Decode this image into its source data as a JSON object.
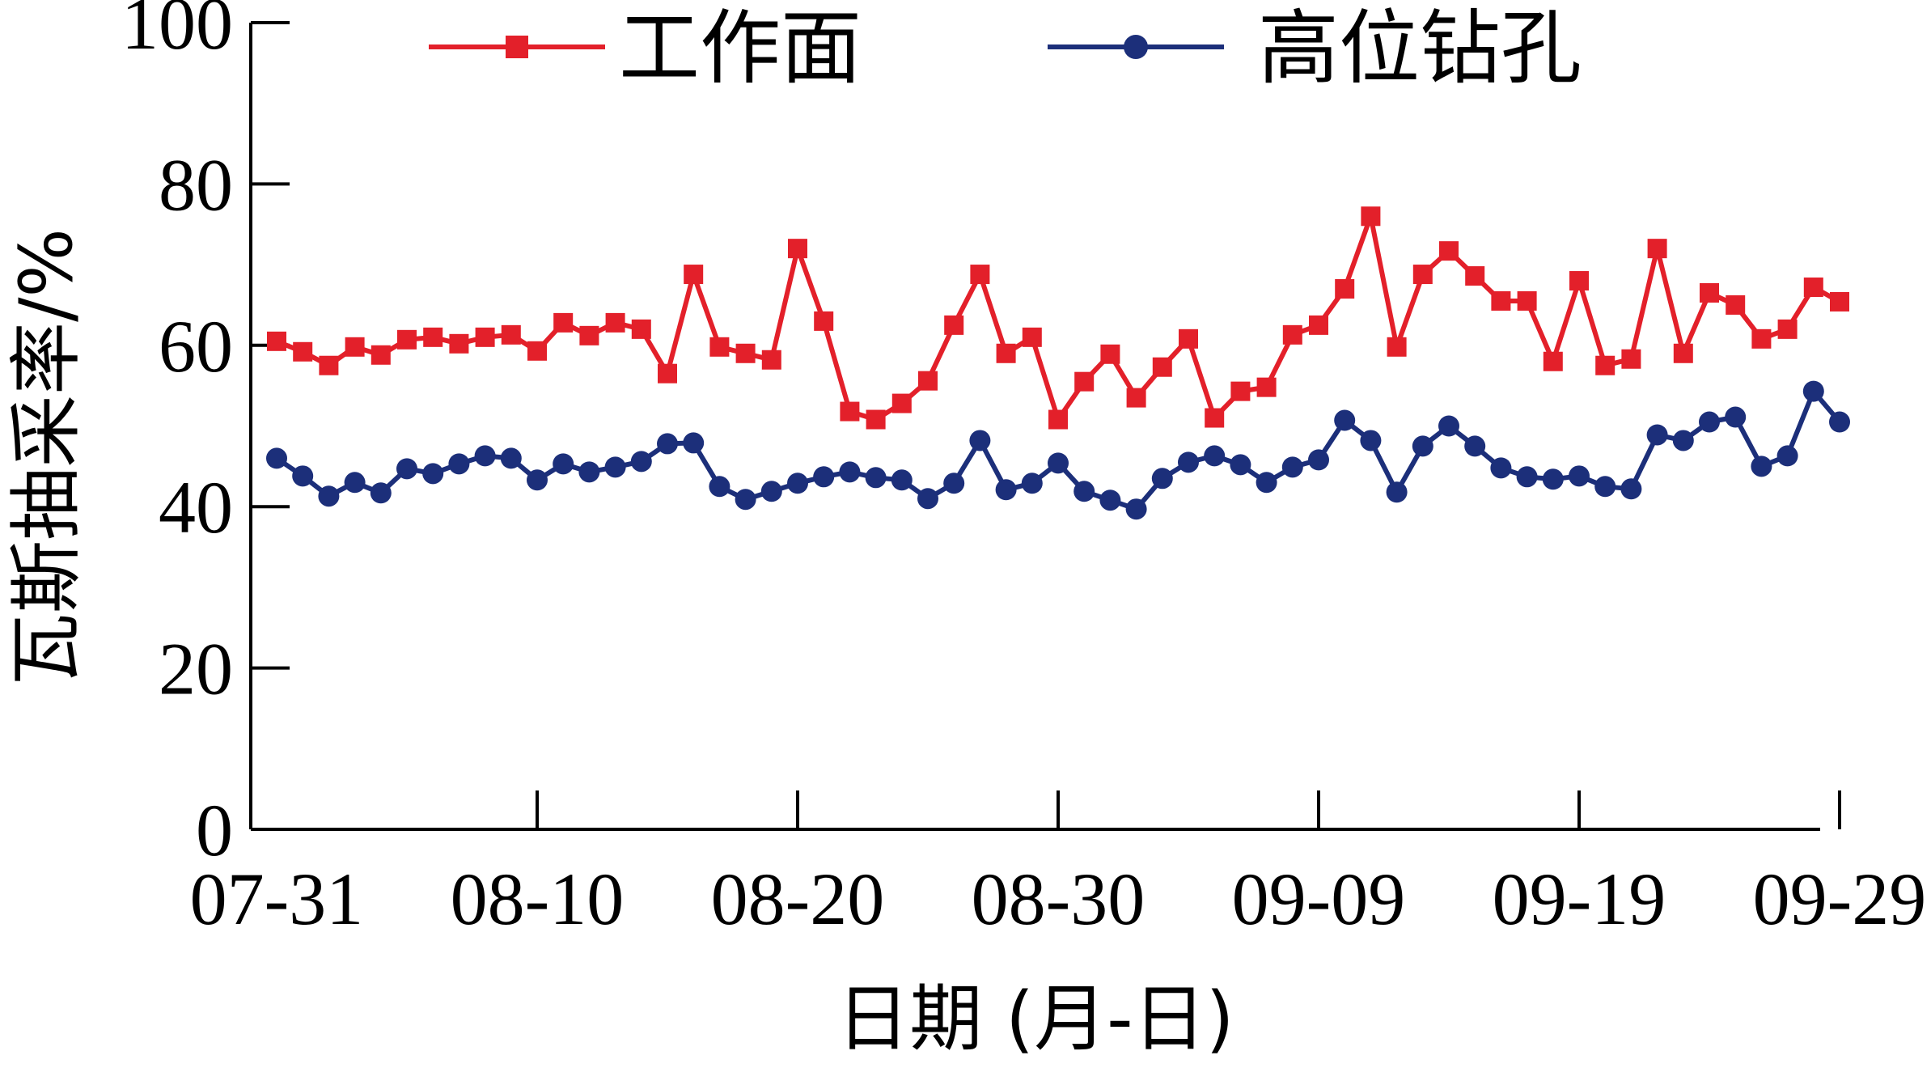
{
  "chart_data": {
    "type": "line",
    "xlabel": "日期 (月-日)",
    "ylabel": "瓦斯抽采率/%",
    "ylim": [
      0,
      100
    ],
    "yticks": [
      0,
      20,
      40,
      60,
      80,
      100
    ],
    "xlim_days": [
      0,
      61
    ],
    "xticks": [
      "07-31",
      "08-10",
      "08-20",
      "08-30",
      "09-09",
      "09-19",
      "09-29"
    ],
    "legend_position": "top",
    "grid": false,
    "series": [
      {
        "name": "工作面",
        "color": "#e3202a",
        "marker": "square",
        "values": [
          60.5,
          59.2,
          57.5,
          59.8,
          58.8,
          60.7,
          61.0,
          60.2,
          61.0,
          61.3,
          59.3,
          62.8,
          61.2,
          62.8,
          62.0,
          56.5,
          68.8,
          59.8,
          59.0,
          58.2,
          72.0,
          63.0,
          51.8,
          50.8,
          52.8,
          55.6,
          62.5,
          68.8,
          59.0,
          61.0,
          50.8,
          55.5,
          58.9,
          53.5,
          57.3,
          60.8,
          51.0,
          54.3,
          54.8,
          61.3,
          62.5,
          67.0,
          76.0,
          59.8,
          68.8,
          71.7,
          68.6,
          65.5,
          65.5,
          58.0,
          68.0,
          57.5,
          58.3,
          72.0,
          59.0,
          66.5,
          65.0,
          60.8,
          62.0,
          67.2,
          65.4
        ]
      },
      {
        "name": "高位钻孔",
        "color": "#1c2f7a",
        "marker": "circle",
        "values": [
          46.0,
          43.8,
          41.3,
          43.0,
          41.7,
          44.7,
          44.1,
          45.3,
          46.3,
          46.0,
          43.3,
          45.3,
          44.3,
          44.9,
          45.6,
          47.8,
          47.9,
          42.5,
          40.9,
          41.9,
          42.9,
          43.7,
          44.3,
          43.6,
          43.3,
          41.0,
          42.9,
          48.2,
          42.1,
          42.9,
          45.4,
          41.9,
          40.8,
          39.7,
          43.5,
          45.5,
          46.3,
          45.2,
          43.0,
          44.9,
          45.8,
          50.7,
          48.2,
          41.8,
          47.5,
          50.0,
          47.5,
          44.8,
          43.7,
          43.4,
          43.8,
          42.5,
          42.2,
          48.9,
          48.2,
          50.5,
          51.1,
          45.0,
          46.3,
          54.3,
          50.5
        ]
      }
    ]
  }
}
